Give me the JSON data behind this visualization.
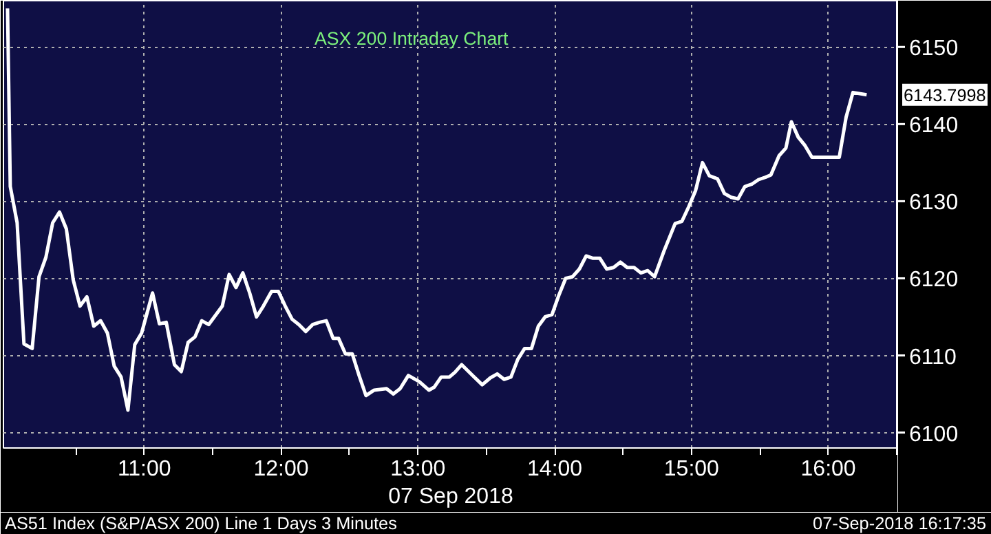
{
  "chart_data": {
    "type": "line",
    "title": "ASX 200 Intraday Chart",
    "xlabel": "07 Sep 2018",
    "x": [
      10.0,
      10.02,
      10.07,
      10.12,
      10.18,
      10.23,
      10.28,
      10.33,
      10.38,
      10.43,
      10.48,
      10.53,
      10.58,
      10.63,
      10.68,
      10.73,
      10.78,
      10.83,
      10.88,
      10.93,
      10.98,
      11.06,
      11.11,
      11.16,
      11.22,
      11.27,
      11.32,
      11.37,
      11.42,
      11.47,
      11.52,
      11.57,
      11.62,
      11.67,
      11.72,
      11.77,
      11.82,
      11.87,
      11.93,
      11.98,
      12.03,
      12.08,
      12.13,
      12.18,
      12.23,
      12.28,
      12.33,
      12.38,
      12.42,
      12.47,
      12.52,
      12.57,
      12.62,
      12.68,
      12.77,
      12.82,
      12.87,
      12.93,
      13.01,
      13.08,
      13.12,
      13.17,
      13.23,
      13.27,
      13.32,
      13.4,
      13.47,
      13.53,
      13.58,
      13.63,
      13.68,
      13.73,
      13.78,
      13.83,
      13.88,
      13.93,
      13.98,
      14.03,
      14.08,
      14.13,
      14.18,
      14.23,
      14.28,
      14.33,
      14.38,
      14.43,
      14.48,
      14.53,
      14.58,
      14.63,
      14.68,
      14.73,
      14.8,
      14.88,
      14.93,
      14.98,
      15.03,
      15.08,
      15.13,
      15.19,
      15.24,
      15.29,
      15.34,
      15.39,
      15.44,
      15.49,
      15.54,
      15.58,
      15.64,
      15.69,
      15.73,
      15.78,
      15.83,
      15.88,
      16.08,
      16.13,
      16.18,
      16.28
    ],
    "series": [
      {
        "color": "#ffffff",
        "values": [
          6155,
          6131.9,
          6127.2,
          6111.5,
          6110.9,
          6120.2,
          6122.7,
          6127.2,
          6128.6,
          6126.4,
          6119.8,
          6116.4,
          6117.6,
          6113.8,
          6114.5,
          6112.9,
          6108.6,
          6107.2,
          6102.9,
          6111.4,
          6112.9,
          6118.1,
          6114.1,
          6114.3,
          6108.8,
          6107.9,
          6111.7,
          6112.4,
          6114.5,
          6114.0,
          6115.2,
          6116.4,
          6120.5,
          6118.8,
          6120.7,
          6118.1,
          6115.0,
          6116.4,
          6118.3,
          6118.3,
          6116.4,
          6114.7,
          6114.0,
          6113.1,
          6114.0,
          6114.3,
          6114.5,
          6112.2,
          6112.2,
          6110.2,
          6110.2,
          6107.4,
          6104.8,
          6105.5,
          6105.7,
          6105.0,
          6105.7,
          6107.4,
          6106.6,
          6105.5,
          6105.9,
          6107.2,
          6107.2,
          6107.8,
          6108.8,
          6107.4,
          6106.2,
          6107.1,
          6107.6,
          6106.9,
          6107.2,
          6109.5,
          6110.9,
          6110.9,
          6113.8,
          6115.0,
          6115.3,
          6117.8,
          6120.0,
          6120.2,
          6121.2,
          6122.9,
          6122.6,
          6122.6,
          6121.2,
          6121.4,
          6122.1,
          6121.4,
          6121.4,
          6120.7,
          6121.0,
          6120.2,
          6123.6,
          6127.1,
          6127.4,
          6129.3,
          6131.4,
          6135.0,
          6133.3,
          6132.9,
          6131.0,
          6130.5,
          6130.3,
          6131.9,
          6132.2,
          6132.8,
          6133.1,
          6133.4,
          6135.9,
          6136.9,
          6140.3,
          6138.3,
          6137.2,
          6135.7,
          6135.7,
          6140.9,
          6144.1,
          6143.8
        ]
      }
    ],
    "xlim": [
      9.97,
      16.51
    ],
    "xticks": [
      {
        "value": 10.5,
        "label": null
      },
      {
        "value": 11,
        "label": "11:00"
      },
      {
        "value": 11.5,
        "label": null
      },
      {
        "value": 12,
        "label": "12:00"
      },
      {
        "value": 12.5,
        "label": null
      },
      {
        "value": 13,
        "label": "13:00"
      },
      {
        "value": 13.5,
        "label": null
      },
      {
        "value": 14,
        "label": "14:00"
      },
      {
        "value": 14.5,
        "label": null
      },
      {
        "value": 15,
        "label": "15:00"
      },
      {
        "value": 15.5,
        "label": null
      },
      {
        "value": 16,
        "label": "16:00"
      },
      {
        "value": 16.5,
        "label": null
      }
    ],
    "ylim": [
      6098,
      6156
    ],
    "yticks": [
      6100,
      6110,
      6120,
      6130,
      6140,
      6150
    ],
    "grid": true,
    "line_style": "solid",
    "annotations": [
      "6143.7998",
      "AS51 Index (S&P/ASX 200) Line 1 Days 3 Minutes",
      "07-Sep-2018 16:17:35"
    ]
  }
}
